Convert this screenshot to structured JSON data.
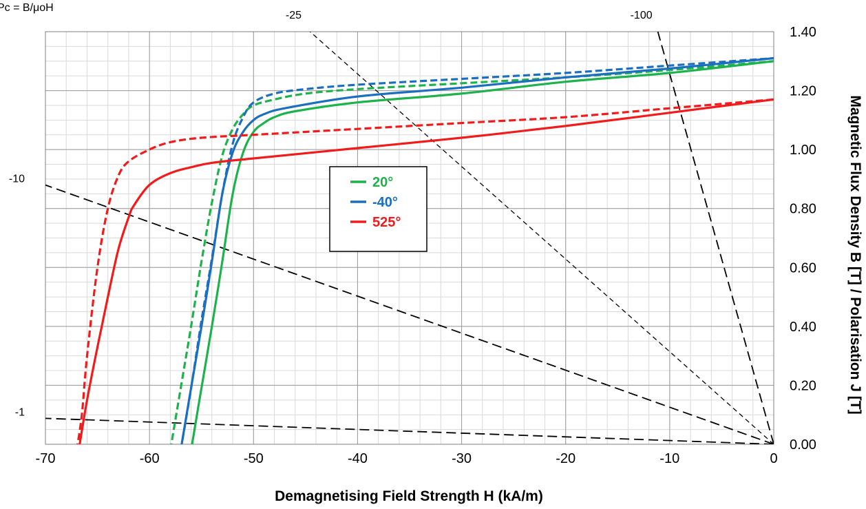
{
  "chart_data": {
    "type": "line",
    "corner_note": "Pc = B/μoH",
    "xlabel": "Demagnetising Field Strength H (kA/m)",
    "ylabel": "Magnetic Flux Density B [T] / Polarisation J [T]",
    "xlim": [
      -70,
      0
    ],
    "ylim": [
      0,
      1.4
    ],
    "x_ticks": [
      "-70",
      "-60",
      "-50",
      "-40",
      "-30",
      "-20",
      "-10",
      "0"
    ],
    "y_ticks": [
      "0.00",
      "0.20",
      "0.40",
      "0.60",
      "0.80",
      "1.00",
      "1.20",
      "1.40"
    ],
    "y_axis_position": "right",
    "grid": true,
    "legend_position": "center",
    "legend": [
      {
        "label": "20°",
        "color": "#1db24b"
      },
      {
        "label": "-40°",
        "color": "#1c6fc0"
      },
      {
        "label": "525°",
        "color": "#f21b1b"
      }
    ],
    "series": [
      {
        "name": "20°",
        "curve": "B",
        "style": "solid",
        "color": "#1db24b",
        "x": [
          -56.0,
          -55.2,
          -54.0,
          -53.0,
          -52.0,
          -51.0,
          -50.0,
          -49.0,
          -48.0,
          -46.0,
          -40.0,
          -30.0,
          -20.0,
          -10.0,
          0.0
        ],
        "y": [
          -0.02,
          0.15,
          0.4,
          0.62,
          0.85,
          0.99,
          1.06,
          1.09,
          1.11,
          1.13,
          1.16,
          1.19,
          1.23,
          1.26,
          1.3
        ]
      },
      {
        "name": "20°",
        "curve": "J",
        "style": "dashed",
        "color": "#1db24b",
        "x": [
          -58.0,
          -57.0,
          -56.0,
          -55.0,
          -54.0,
          -53.0,
          -52.0,
          -51.0,
          -50.0,
          -48.0,
          -45.0,
          -40.0,
          -30.0,
          -20.0,
          -10.0,
          0.0
        ],
        "y": [
          -0.02,
          0.19,
          0.4,
          0.62,
          0.82,
          0.98,
          1.07,
          1.12,
          1.15,
          1.17,
          1.19,
          1.205,
          1.225,
          1.245,
          1.27,
          1.3
        ]
      },
      {
        "name": "-40°",
        "curve": "B",
        "style": "solid",
        "color": "#1c6fc0",
        "x": [
          -57.0,
          -56.2,
          -55.0,
          -54.0,
          -53.0,
          -52.0,
          -51.0,
          -50.0,
          -49.0,
          -47.0,
          -40.0,
          -30.0,
          -20.0,
          -10.0,
          0.0
        ],
        "y": [
          -0.02,
          0.15,
          0.4,
          0.62,
          0.85,
          0.99,
          1.06,
          1.1,
          1.12,
          1.14,
          1.18,
          1.21,
          1.245,
          1.275,
          1.31
        ]
      },
      {
        "name": "-40°",
        "curve": "J",
        "style": "dashed",
        "color": "#1c6fc0",
        "x": [
          -57.0,
          -56.0,
          -55.0,
          -54.0,
          -53.0,
          -52.0,
          -51.0,
          -50.0,
          -48.0,
          -45.0,
          -40.0,
          -30.0,
          -20.0,
          -10.0,
          0.0
        ],
        "y": [
          -0.02,
          0.19,
          0.42,
          0.63,
          0.85,
          1.02,
          1.11,
          1.16,
          1.19,
          1.205,
          1.22,
          1.24,
          1.26,
          1.285,
          1.31
        ]
      },
      {
        "name": "525°",
        "curve": "B",
        "style": "solid",
        "color": "#f21b1b",
        "x": [
          -66.8,
          -66.0,
          -65.0,
          -64.0,
          -63.0,
          -62.0,
          -61.5,
          -60.0,
          -58.0,
          -56.0,
          -54.0,
          -50.0,
          -40.0,
          -30.0,
          -20.0,
          -10.0,
          0.0
        ],
        "y": [
          -0.02,
          0.15,
          0.33,
          0.5,
          0.66,
          0.77,
          0.81,
          0.88,
          0.92,
          0.94,
          0.955,
          0.97,
          1.005,
          1.04,
          1.08,
          1.125,
          1.17
        ]
      },
      {
        "name": "525°",
        "curve": "J",
        "style": "dashed",
        "color": "#f21b1b",
        "x": [
          -67.0,
          -66.5,
          -66.0,
          -65.0,
          -64.0,
          -63.0,
          -62.0,
          -60.0,
          -58.0,
          -55.0,
          -50.0,
          -40.0,
          -30.0,
          -20.0,
          -10.0,
          0.0
        ],
        "y": [
          -0.02,
          0.1,
          0.3,
          0.6,
          0.8,
          0.91,
          0.96,
          1.0,
          1.025,
          1.04,
          1.05,
          1.07,
          1.09,
          1.11,
          1.14,
          1.17
        ]
      }
    ],
    "load_lines": [
      {
        "label": "-1",
        "slope": -1
      },
      {
        "label": "-10",
        "slope": -10
      },
      {
        "label": "-25",
        "slope": -25
      },
      {
        "label": "-100",
        "slope": -100
      }
    ]
  }
}
